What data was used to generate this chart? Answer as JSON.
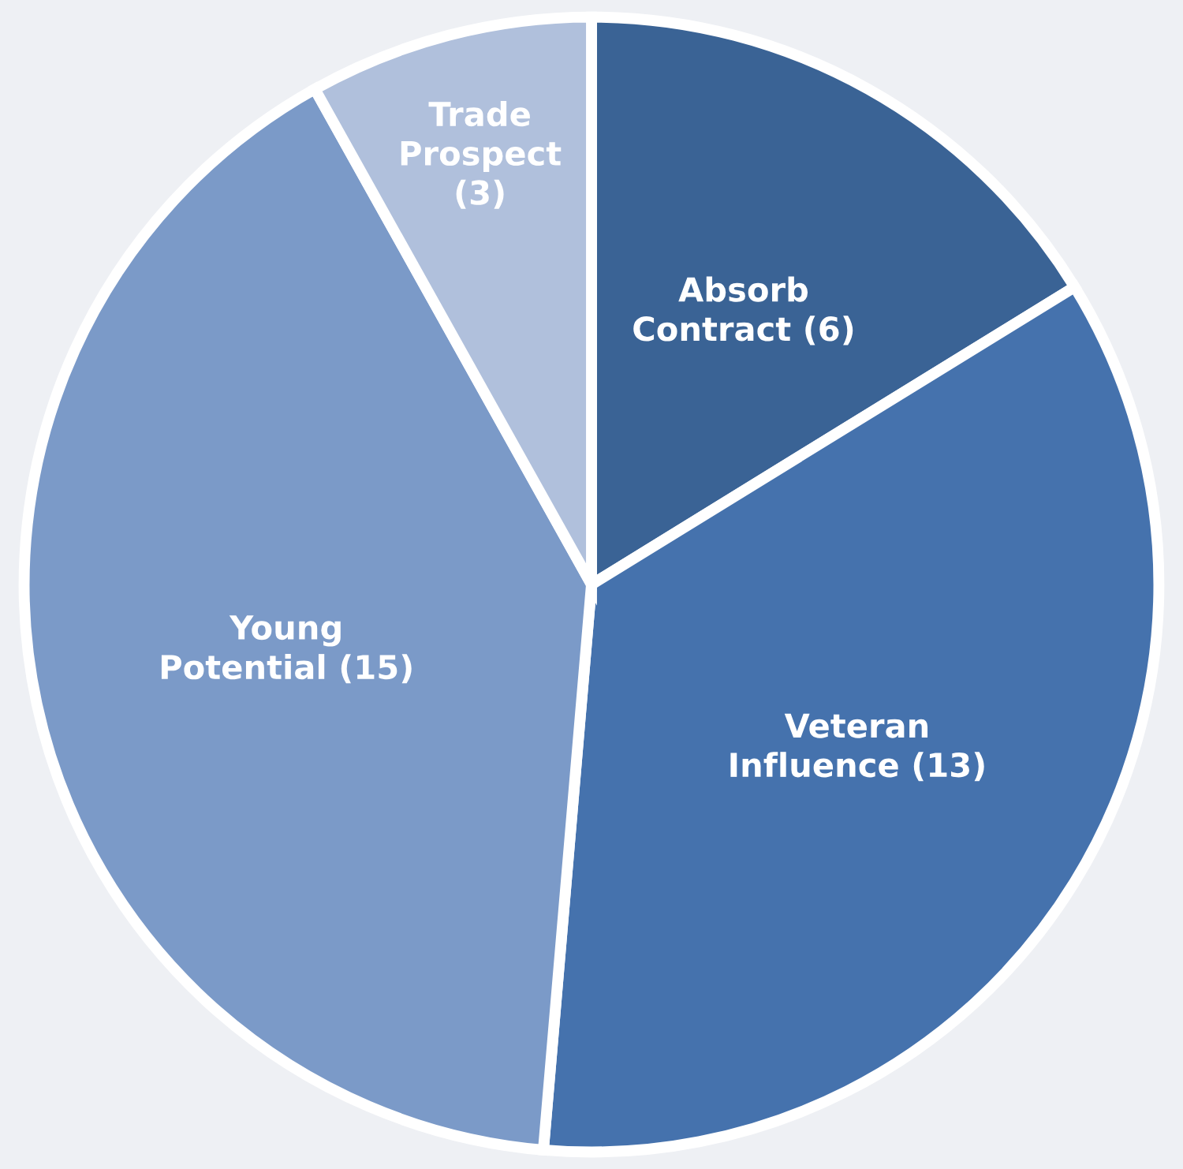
{
  "chart_data": {
    "type": "pie",
    "categories": [
      "Absorb Contract (6)",
      "Veteran Influence (13)",
      "Young Potential (15)",
      "Trade Prospect (3)"
    ],
    "values": [
      6,
      13,
      15,
      3
    ],
    "colors": [
      "#3a6395",
      "#4572ad",
      "#7b9ac8",
      "#b0c0dc"
    ]
  }
}
